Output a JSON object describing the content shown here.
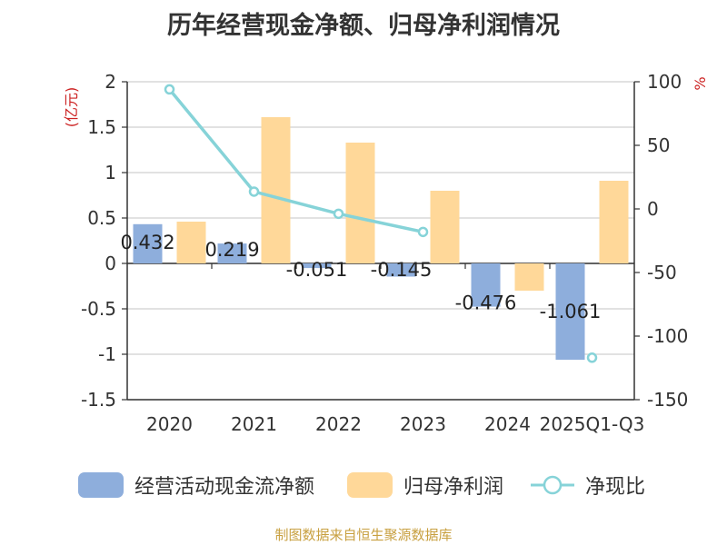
{
  "chart_data": {
    "type": "bar",
    "title": "历年经营现金净额、归母净利润情况",
    "categories": [
      "2020",
      "2021",
      "2022",
      "2023",
      "2024",
      "2025Q1-Q3"
    ],
    "series": [
      {
        "name": "经营活动现金流净额",
        "axis": "left",
        "type": "bar",
        "color": "#8eaedc",
        "values": [
          0.432,
          0.219,
          -0.051,
          -0.145,
          -0.476,
          -1.061
        ],
        "labels": [
          "0.432",
          "0.219",
          "-0.051",
          "-0.145",
          "-0.476",
          "-1.061"
        ]
      },
      {
        "name": "归母净利润",
        "axis": "left",
        "type": "bar",
        "color": "#ffd899",
        "values": [
          0.46,
          1.61,
          1.33,
          0.8,
          -0.3,
          0.91
        ]
      },
      {
        "name": "净现比",
        "axis": "right",
        "type": "line",
        "color": "#86d3d8",
        "values": [
          94,
          13.6,
          -3.8,
          -18.1,
          null,
          -117
        ]
      }
    ],
    "y_left": {
      "label": "(亿元)",
      "lim": [
        -1.5,
        2
      ],
      "ticks": [
        2,
        1.5,
        1,
        0.5,
        0,
        -0.5,
        -1,
        -1.5
      ],
      "tick_labels": [
        "2",
        "1.5",
        "1",
        "0.5",
        "0",
        "-0.5",
        "-1",
        "-1.5"
      ]
    },
    "y_right": {
      "label": "%",
      "lim": [
        -150,
        100
      ],
      "ticks": [
        100,
        50,
        0,
        -50,
        -100,
        -150
      ],
      "tick_labels": [
        "100",
        "50",
        "0",
        "-50",
        "-100",
        "-150"
      ]
    },
    "grid": true,
    "legend_position": "bottom"
  },
  "legend": {
    "items": [
      {
        "label": "经营活动现金流净额",
        "color": "#8eaedc",
        "kind": "bar"
      },
      {
        "label": "归母净利润",
        "color": "#ffd899",
        "kind": "bar"
      },
      {
        "label": "净现比",
        "color": "#86d3d8",
        "kind": "line"
      }
    ]
  },
  "source": "制图数据来自恒生聚源数据库"
}
